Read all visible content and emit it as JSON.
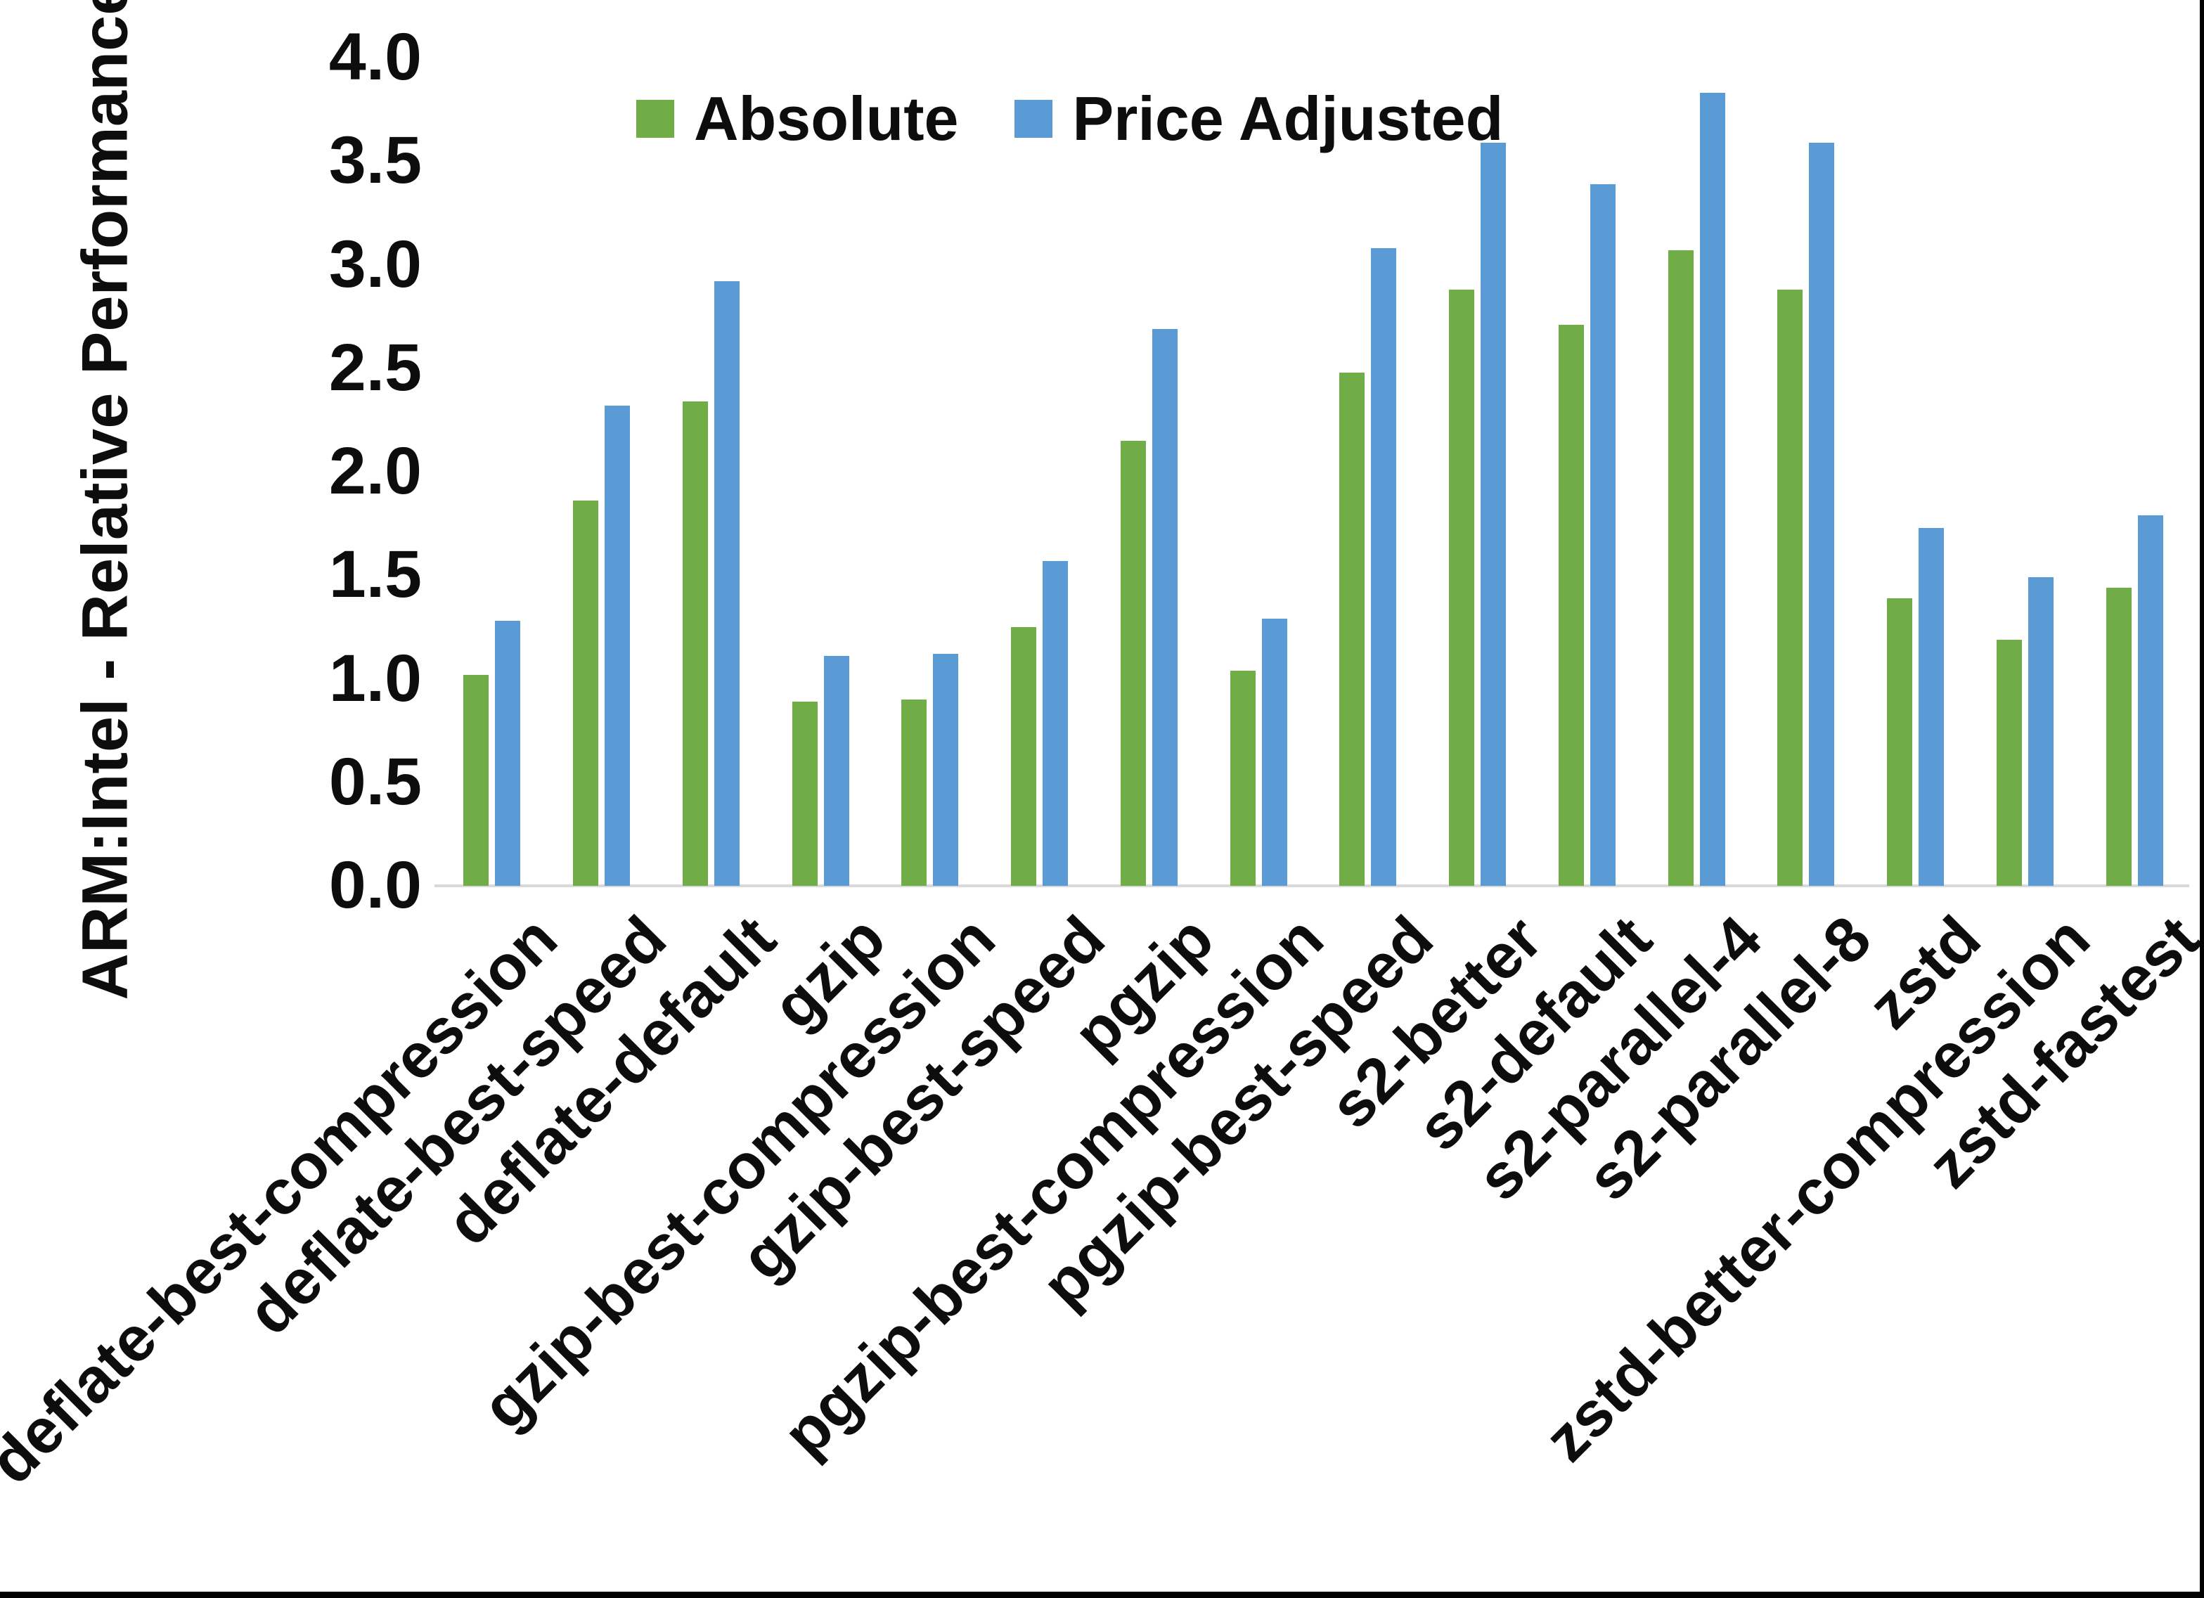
{
  "chart_data": {
    "type": "bar",
    "title": "",
    "ylabel": "ARM:Intel - Relative Performance",
    "xlabel": "",
    "ylim": [
      0.0,
      4.0
    ],
    "ytick_step": 0.5,
    "yticks": [
      "0.0",
      "0.5",
      "1.0",
      "1.5",
      "2.0",
      "2.5",
      "3.0",
      "3.5",
      "4.0"
    ],
    "grid": false,
    "legend_position": "top-center",
    "categories": [
      "deflate-best-compression",
      "deflate-best-speed",
      "deflate-default",
      "gzip",
      "gzip-best-compression",
      "gzip-best-speed",
      "pgzip",
      "pgzip-best-compression",
      "pgzip-best-speed",
      "s2-better",
      "s2-default",
      "s2-parallel-4",
      "s2-parallel-8",
      "zstd",
      "zstd-better-compression",
      "zstd-fastest"
    ],
    "series": [
      {
        "name": "Absolute",
        "color": "#70AD47",
        "values": [
          1.02,
          1.86,
          2.34,
          0.89,
          0.9,
          1.25,
          2.15,
          1.04,
          2.48,
          2.88,
          2.71,
          3.07,
          2.88,
          1.39,
          1.19,
          1.44
        ]
      },
      {
        "name": "Price Adjusted",
        "color": "#5B9BD5",
        "values": [
          1.28,
          2.32,
          2.92,
          1.11,
          1.12,
          1.57,
          2.69,
          1.29,
          3.08,
          3.59,
          3.39,
          3.83,
          3.59,
          1.73,
          1.49,
          1.79
        ]
      }
    ],
    "colors": {
      "axis_line": "#D9D9D9",
      "text": "#0D0D0D",
      "frame_border": "#000000",
      "background": "#FFFFFF"
    }
  }
}
